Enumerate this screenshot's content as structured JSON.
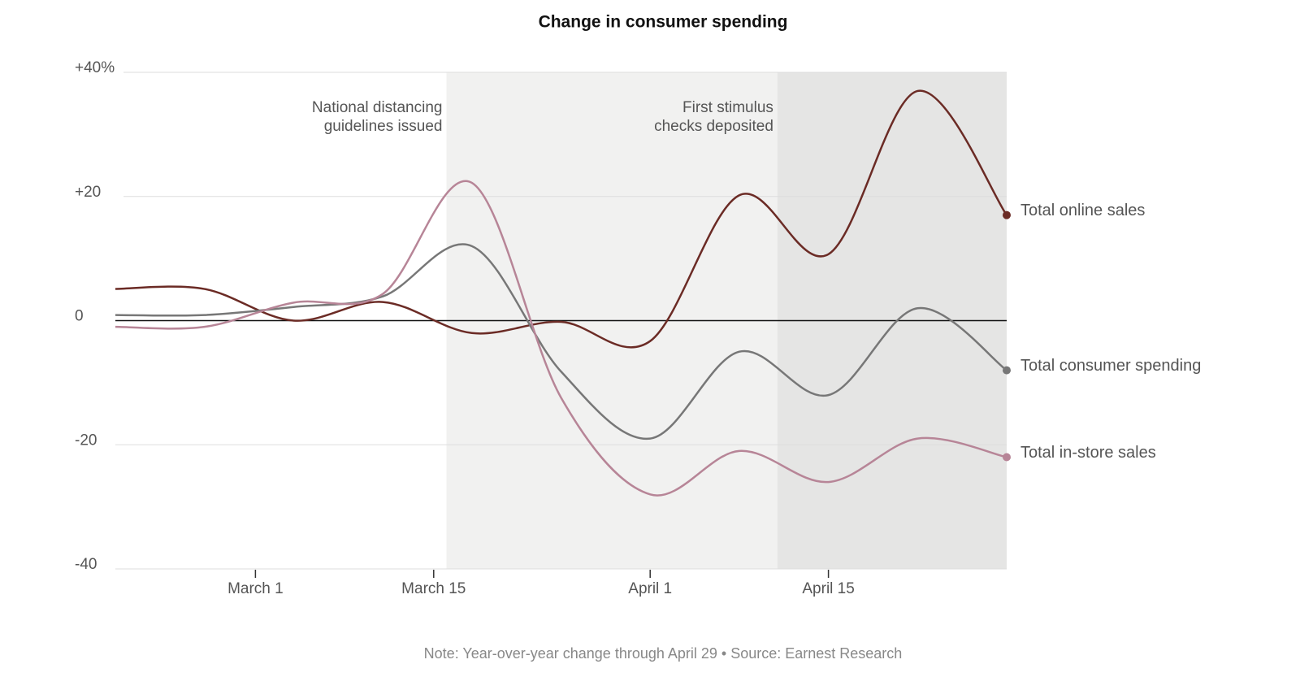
{
  "chart_data": {
    "type": "line",
    "title": "Change in consumer spending",
    "note": "Note: Year-over-year change through April 29 • Source: Earnest Research",
    "x": [
      "02-19",
      "02-26",
      "03-04",
      "03-11",
      "03-18",
      "03-25",
      "04-01",
      "04-08",
      "04-15",
      "04-22",
      "04-29"
    ],
    "xlim": [
      "02-19",
      "04-29"
    ],
    "xticks": [
      {
        "value": "03-01",
        "label": "March 1"
      },
      {
        "value": "03-15",
        "label": "March 15"
      },
      {
        "value": "04-01",
        "label": "April 1"
      },
      {
        "value": "04-15",
        "label": "April 15"
      }
    ],
    "ylim": [
      -40,
      40
    ],
    "yticks": [
      {
        "value": 40,
        "label": "+40%"
      },
      {
        "value": 20,
        "label": "+20"
      },
      0,
      -20,
      -40
    ],
    "grid": true,
    "series": [
      {
        "name": "Total online sales",
        "color": "#6b2b25",
        "values": [
          5.1,
          5.1,
          0,
          3,
          -2,
          -0.2,
          -3.3,
          20.2,
          10.7,
          37,
          17
        ]
      },
      {
        "name": "Total consumer spending",
        "color": "#777777",
        "values": [
          0.9,
          0.9,
          2.2,
          3.9,
          12,
          -8.2,
          -19,
          -5,
          -12,
          2,
          -8
        ]
      },
      {
        "name": "Total in-store sales",
        "color": "#b78597",
        "values": [
          -1,
          -1,
          2.9,
          4.3,
          22.2,
          -12.4,
          -28,
          -21,
          -26,
          -19,
          -22
        ]
      }
    ],
    "annotations": [
      {
        "x": "03-16",
        "lines": [
          "National distancing",
          "guidelines issued"
        ],
        "shade": "#f1f1f0"
      },
      {
        "x": "04-11",
        "lines": [
          "First stimulus",
          "checks deposited"
        ],
        "shade": "#e5e5e4"
      }
    ]
  }
}
